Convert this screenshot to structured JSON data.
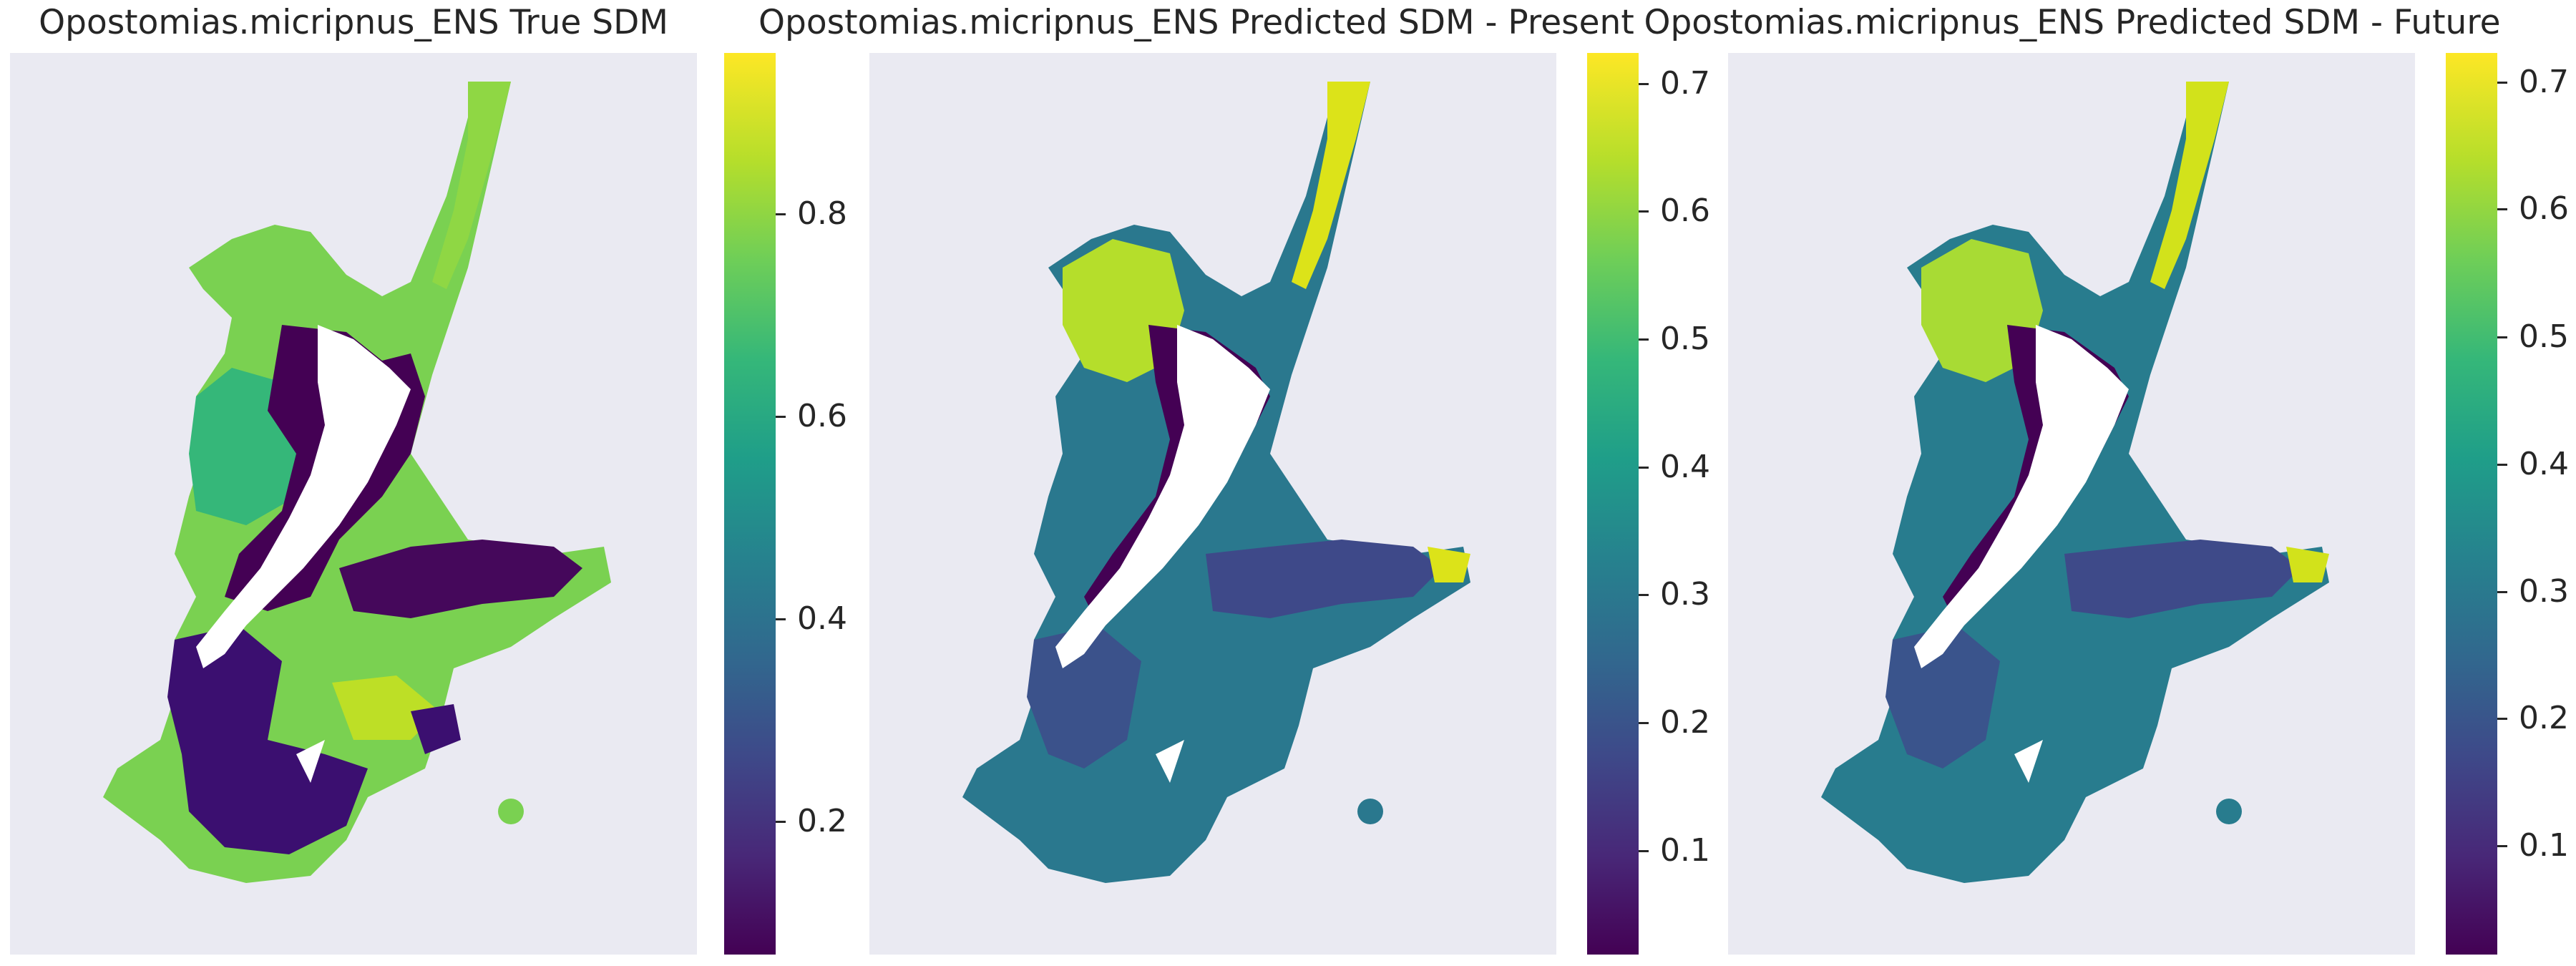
{
  "panels": [
    {
      "title": "Opostomias.micripnus_ENS True SDM",
      "colorbar": {
        "min": 0.02,
        "max": 0.91,
        "ticks": [
          "0.2",
          "0.4",
          "0.6",
          "0.8"
        ]
      }
    },
    {
      "title": "Opostomias.micripnus_ENS Predicted SDM - Present",
      "colorbar": {
        "min": 0.02,
        "max": 0.725,
        "ticks": [
          "0.1",
          "0.2",
          "0.3",
          "0.4",
          "0.5",
          "0.6",
          "0.7"
        ]
      }
    },
    {
      "title": "Opostomias.micripnus_ENS Predicted SDM - Future",
      "colorbar": {
        "min": 0.02,
        "max": 0.735,
        "ticks": [
          "0.1",
          "0.2",
          "0.3",
          "0.4",
          "0.5",
          "0.6",
          "0.7"
        ]
      }
    }
  ],
  "colormap": "viridis",
  "colors": {
    "background": "#eaeaf2",
    "land": "#ffffff"
  }
}
